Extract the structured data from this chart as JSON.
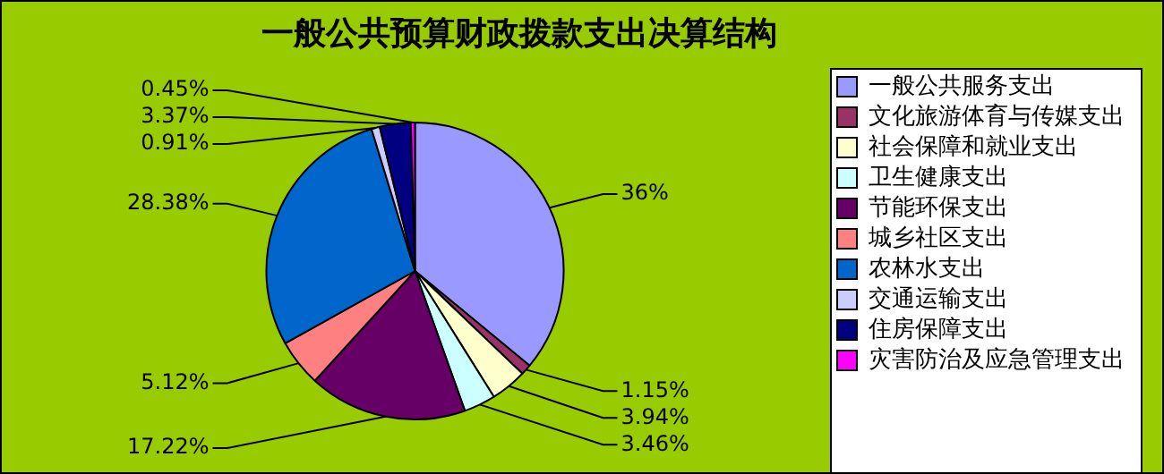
{
  "chart_data": {
    "type": "pie",
    "title": "一般公共预算财政拨款支出决算结构",
    "categories": [
      "一般公共服务支出",
      "文化旅游体育与传媒支出",
      "社会保障和就业支出",
      "卫生健康支出",
      "节能环保支出",
      "城乡社区支出",
      "农林水支出",
      "交通运输支出",
      "住房保障支出",
      "灾害防治及应急管理支出"
    ],
    "values": [
      36,
      1.15,
      3.94,
      3.46,
      17.22,
      5.12,
      28.38,
      0.91,
      3.37,
      0.45
    ],
    "value_labels": [
      "36%",
      "1.15%",
      "3.94%",
      "3.46%",
      "17.22%",
      "5.12%",
      "28.38%",
      "0.91%",
      "3.37%",
      "0.45%"
    ],
    "colors": [
      "#9999ff",
      "#993366",
      "#ffffcc",
      "#ccffff",
      "#660066",
      "#ff8080",
      "#0066cc",
      "#ccccff",
      "#000080",
      "#ff00ff"
    ],
    "legend": "right"
  }
}
